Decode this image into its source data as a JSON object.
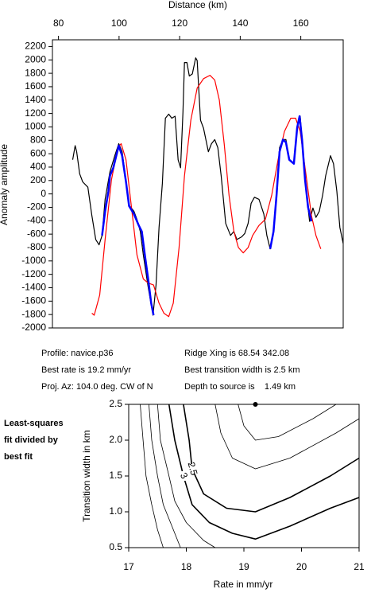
{
  "chart_data": [
    {
      "type": "line",
      "xlabel": "Distance (km)",
      "ylabel": "Anomaly amplitude",
      "xlim": [
        78,
        174
      ],
      "xticks": [
        80,
        100,
        120,
        140,
        160
      ],
      "ylim": [
        -2000,
        2300
      ],
      "yticks": [
        2200,
        2000,
        1800,
        1600,
        1400,
        1200,
        1000,
        800,
        600,
        400,
        200,
        0,
        -200,
        -400,
        -600,
        -800,
        -1000,
        -1200,
        -1400,
        -1600,
        -1800,
        -2000
      ],
      "series": [
        {
          "color": "#000000",
          "x": [
            84.7,
            85.5,
            86,
            87,
            88,
            89.7,
            91,
            92.3,
            93.4,
            94.4,
            95.4,
            97,
            98.6,
            99.9,
            101,
            102.3,
            103.3,
            104.9,
            105.9,
            107,
            108,
            109.6,
            111.2,
            112.2,
            113.2,
            114.3,
            115.3,
            116.4,
            117.4,
            118.5,
            119.5,
            120.3,
            121.1,
            121.6,
            122.4,
            123.2,
            124.2,
            125.3,
            125.8,
            126.9,
            127.9,
            129.5,
            130.5,
            131.6,
            132.6,
            133.7,
            135.2,
            136.8,
            137.9,
            138.9,
            140.5,
            141.5,
            142.6,
            143.6,
            144.7,
            146.2,
            147.8,
            148.8,
            149.9,
            151,
            152,
            153,
            154.1,
            155.1,
            156.2,
            157.7,
            158.8,
            159.8,
            160.8,
            161.9,
            162.9,
            164,
            165,
            166.1,
            167.2,
            168.2,
            169.8,
            170.8,
            171.9,
            172.9,
            174
          ],
          "values": [
            510,
            720,
            630,
            300,
            180,
            100,
            -320,
            -680,
            -760,
            -620,
            -80,
            330,
            570,
            750,
            630,
            210,
            -170,
            -260,
            -380,
            -560,
            -910,
            -1390,
            -1810,
            -1360,
            -500,
            160,
            1130,
            1190,
            1130,
            1160,
            510,
            390,
            1220,
            1960,
            1960,
            1760,
            1790,
            2030,
            1990,
            1100,
            980,
            630,
            750,
            810,
            690,
            270,
            -440,
            -620,
            -560,
            -680,
            -640,
            -590,
            -440,
            -140,
            -50,
            -80,
            -300,
            -620,
            -820,
            -560,
            40,
            690,
            810,
            810,
            510,
            450,
            990,
            1160,
            570,
            -20,
            -410,
            -210,
            -350,
            -260,
            -20,
            270,
            570,
            450,
            40,
            -500,
            -740
          ]
        },
        {
          "color": "#ff0000",
          "x": [
            91,
            91.8,
            93.6,
            95.4,
            97.5,
            99.6,
            100.7,
            102.3,
            104.1,
            105.9,
            108,
            109.6,
            111.4,
            113.2,
            114.8,
            116.4,
            117.9,
            119.8,
            121.6,
            123.7,
            125.8,
            127.9,
            130,
            131.6,
            133.1,
            134.7,
            136.3,
            137.9,
            139.4,
            141,
            142.6,
            144.1,
            146.2,
            148.3,
            150.4,
            152.5,
            154.6,
            156.7,
            158.3,
            159.8,
            161.4,
            163.5,
            165,
            166.6
          ],
          "values": [
            -1780,
            -1810,
            -1510,
            -680,
            210,
            690,
            750,
            510,
            -200,
            -910,
            -1270,
            -1330,
            -1360,
            -1630,
            -1780,
            -1830,
            -1630,
            -800,
            270,
            1100,
            1580,
            1720,
            1770,
            1700,
            1400,
            750,
            -20,
            -560,
            -800,
            -880,
            -800,
            -620,
            -470,
            -380,
            -20,
            510,
            930,
            1130,
            1130,
            930,
            390,
            -320,
            -620,
            -820
          ]
        },
        {
          "color": "#0000ff",
          "x": [
            94.4,
            95.4,
            96.5,
            97,
            98.1,
            99.1,
            99.9,
            101,
            102.3,
            103.3,
            104.9,
            106.4,
            107.5,
            108.5,
            109.6,
            110.6,
            111.4,
            null,
            149.9,
            151,
            152,
            153,
            154.1,
            155.1,
            156.2,
            157.7,
            158.8,
            159.6,
            160.4,
            161.4,
            162.4,
            163.5
          ],
          "values": [
            -620,
            -260,
            40,
            270,
            390,
            570,
            720,
            570,
            180,
            -180,
            -300,
            -460,
            -560,
            -910,
            -1270,
            -1630,
            -1810,
            null,
            -820,
            -560,
            -20,
            630,
            810,
            770,
            510,
            450,
            990,
            1160,
            810,
            210,
            -200,
            -410
          ]
        }
      ]
    },
    {
      "type": "contour",
      "xlabel": "Rate in mm/yr",
      "ylabel": "Transition width in km",
      "xlim": [
        17,
        21
      ],
      "xticks": [
        17,
        18,
        19,
        20,
        21
      ],
      "ylim": [
        0.5,
        2.5
      ],
      "yticks": [
        {
          "value": 0.5,
          "label": "0.5"
        },
        {
          "value": 1,
          "label": "1.0"
        },
        {
          "value": 1.5,
          "label": "1.5"
        },
        {
          "value": 2,
          "label": "2.0"
        },
        {
          "value": 2.5,
          "label": "2.5"
        }
      ],
      "best_fit": {
        "x": 19.2,
        "y": 2.5
      },
      "contours": [
        {
          "x": [
            18.9,
            19.0,
            19.2,
            19.6,
            20.2,
            20.6
          ],
          "y": [
            2.5,
            2.2,
            2.0,
            2.05,
            2.3,
            2.5
          ]
        },
        {
          "x": [
            18.5,
            18.6,
            18.8,
            19.2,
            19.8,
            20.6,
            21
          ],
          "y": [
            2.5,
            2.1,
            1.75,
            1.6,
            1.75,
            2.1,
            2.3
          ]
        },
        {
          "label": "2.5",
          "x": [
            17.95,
            18.05,
            18.1,
            18.3,
            18.7,
            19.2,
            19.8,
            20.5,
            21
          ],
          "y": [
            2.5,
            2.0,
            1.6,
            1.25,
            1.05,
            1.0,
            1.2,
            1.5,
            1.75
          ]
        },
        {
          "label": "3",
          "x": [
            17.7,
            17.8,
            17.95,
            18.1,
            18.4,
            18.8,
            19.2,
            19.8,
            20.5,
            21
          ],
          "y": [
            2.5,
            2.0,
            1.5,
            1.1,
            0.85,
            0.7,
            0.62,
            0.8,
            1.05,
            1.2
          ]
        },
        {
          "x": [
            17.5,
            17.55,
            17.7,
            17.8,
            18.0,
            18.3,
            18.5
          ],
          "y": [
            2.5,
            2.0,
            1.5,
            1.15,
            0.85,
            0.6,
            0.5
          ]
        },
        {
          "x": [
            17.35,
            17.4,
            17.5,
            17.6,
            17.75,
            17.9
          ],
          "y": [
            2.5,
            2.0,
            1.5,
            1.1,
            0.8,
            0.5
          ]
        },
        {
          "x": [
            17.2,
            17.25,
            17.3,
            17.4,
            17.5,
            17.6
          ],
          "y": [
            2.5,
            2.0,
            1.5,
            1.1,
            0.75,
            0.5
          ]
        }
      ]
    }
  ],
  "info": {
    "left": [
      "Profile: navice.p36",
      "Best rate is 19.2 mm/yr",
      "Proj. Az: 104.0 deg. CW of N"
    ],
    "right": [
      "Ridge Xing is 68.54 342.08",
      "Best transition width is 2.5 km",
      "Depth to source is    1.49 km"
    ]
  },
  "note": [
    "Least-squares",
    "fit divided by",
    "best fit"
  ]
}
